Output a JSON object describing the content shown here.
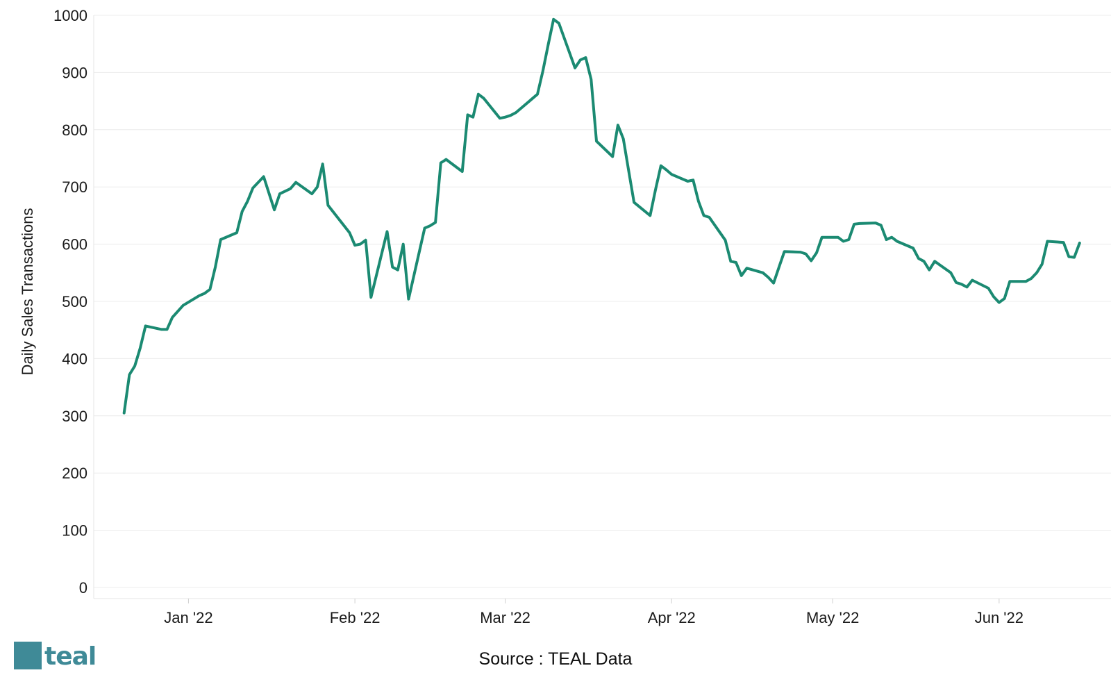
{
  "chart_data": {
    "type": "line",
    "title": "",
    "xlabel": "",
    "ylabel": "Daily Sales Transactions",
    "ylim": [
      0,
      1000
    ],
    "yticks": [
      0,
      100,
      200,
      300,
      400,
      500,
      600,
      700,
      800,
      900,
      1000
    ],
    "xlim": [
      "2021-12-15",
      "2022-06-19"
    ],
    "xticks": [
      {
        "date": "2022-01-01",
        "label": "Jan '22"
      },
      {
        "date": "2022-02-01",
        "label": "Feb '22"
      },
      {
        "date": "2022-03-01",
        "label": "Mar '22"
      },
      {
        "date": "2022-04-01",
        "label": "Apr '22"
      },
      {
        "date": "2022-05-01",
        "label": "May '22"
      },
      {
        "date": "2022-06-01",
        "label": "Jun '22"
      }
    ],
    "grid": true,
    "line_color": "#1b8a72",
    "series": [
      {
        "points": [
          [
            "2021-12-20",
            305
          ],
          [
            "2021-12-21",
            372
          ],
          [
            "2021-12-22",
            387
          ],
          [
            "2021-12-23",
            418
          ],
          [
            "2021-12-24",
            457
          ],
          [
            "2021-12-27",
            451
          ],
          [
            "2021-12-28",
            451
          ],
          [
            "2021-12-29",
            472
          ],
          [
            "2021-12-31",
            493
          ],
          [
            "2022-01-03",
            510
          ],
          [
            "2022-01-04",
            514
          ],
          [
            "2022-01-05",
            521
          ],
          [
            "2022-01-06",
            560
          ],
          [
            "2022-01-07",
            608
          ],
          [
            "2022-01-10",
            620
          ],
          [
            "2022-01-11",
            657
          ],
          [
            "2022-01-12",
            675
          ],
          [
            "2022-01-13",
            698
          ],
          [
            "2022-01-15",
            718
          ],
          [
            "2022-01-17",
            660
          ],
          [
            "2022-01-18",
            688
          ],
          [
            "2022-01-20",
            697
          ],
          [
            "2022-01-21",
            708
          ],
          [
            "2022-01-24",
            688
          ],
          [
            "2022-01-25",
            700
          ],
          [
            "2022-01-26",
            740
          ],
          [
            "2022-01-27",
            668
          ],
          [
            "2022-01-31",
            620
          ],
          [
            "2022-02-01",
            598
          ],
          [
            "2022-02-02",
            600
          ],
          [
            "2022-02-03",
            607
          ],
          [
            "2022-02-04",
            507
          ],
          [
            "2022-02-07",
            622
          ],
          [
            "2022-02-08",
            560
          ],
          [
            "2022-02-09",
            555
          ],
          [
            "2022-02-10",
            600
          ],
          [
            "2022-02-11",
            504
          ],
          [
            "2022-02-14",
            628
          ],
          [
            "2022-02-15",
            632
          ],
          [
            "2022-02-16",
            638
          ],
          [
            "2022-02-17",
            742
          ],
          [
            "2022-02-18",
            748
          ],
          [
            "2022-02-21",
            727
          ],
          [
            "2022-02-22",
            826
          ],
          [
            "2022-02-23",
            822
          ],
          [
            "2022-02-24",
            862
          ],
          [
            "2022-02-25",
            855
          ],
          [
            "2022-02-28",
            820
          ],
          [
            "2022-03-01",
            822
          ],
          [
            "2022-03-02",
            825
          ],
          [
            "2022-03-03",
            830
          ],
          [
            "2022-03-04",
            838
          ],
          [
            "2022-03-07",
            862
          ],
          [
            "2022-03-08",
            902
          ],
          [
            "2022-03-09",
            948
          ],
          [
            "2022-03-10",
            993
          ],
          [
            "2022-03-11",
            986
          ],
          [
            "2022-03-14",
            908
          ],
          [
            "2022-03-15",
            922
          ],
          [
            "2022-03-16",
            926
          ],
          [
            "2022-03-17",
            888
          ],
          [
            "2022-03-18",
            780
          ],
          [
            "2022-03-21",
            753
          ],
          [
            "2022-03-22",
            808
          ],
          [
            "2022-03-23",
            784
          ],
          [
            "2022-03-24",
            728
          ],
          [
            "2022-03-25",
            673
          ],
          [
            "2022-03-28",
            650
          ],
          [
            "2022-03-29",
            695
          ],
          [
            "2022-03-30",
            737
          ],
          [
            "2022-03-31",
            730
          ],
          [
            "2022-04-01",
            722
          ],
          [
            "2022-04-04",
            710
          ],
          [
            "2022-04-05",
            712
          ],
          [
            "2022-04-06",
            675
          ],
          [
            "2022-04-07",
            650
          ],
          [
            "2022-04-08",
            647
          ],
          [
            "2022-04-11",
            607
          ],
          [
            "2022-04-12",
            570
          ],
          [
            "2022-04-13",
            568
          ],
          [
            "2022-04-14",
            545
          ],
          [
            "2022-04-15",
            558
          ],
          [
            "2022-04-18",
            550
          ],
          [
            "2022-04-19",
            542
          ],
          [
            "2022-04-20",
            532
          ],
          [
            "2022-04-21",
            560
          ],
          [
            "2022-04-22",
            587
          ],
          [
            "2022-04-25",
            586
          ],
          [
            "2022-04-26",
            583
          ],
          [
            "2022-04-27",
            571
          ],
          [
            "2022-04-28",
            585
          ],
          [
            "2022-04-29",
            612
          ],
          [
            "2022-05-02",
            612
          ],
          [
            "2022-05-03",
            605
          ],
          [
            "2022-05-04",
            608
          ],
          [
            "2022-05-05",
            635
          ],
          [
            "2022-05-06",
            636
          ],
          [
            "2022-05-09",
            637
          ],
          [
            "2022-05-10",
            633
          ],
          [
            "2022-05-11",
            608
          ],
          [
            "2022-05-12",
            612
          ],
          [
            "2022-05-13",
            605
          ],
          [
            "2022-05-16",
            593
          ],
          [
            "2022-05-17",
            575
          ],
          [
            "2022-05-18",
            570
          ],
          [
            "2022-05-19",
            555
          ],
          [
            "2022-05-20",
            570
          ],
          [
            "2022-05-23",
            550
          ],
          [
            "2022-05-24",
            533
          ],
          [
            "2022-05-25",
            530
          ],
          [
            "2022-05-26",
            525
          ],
          [
            "2022-05-27",
            537
          ],
          [
            "2022-05-30",
            523
          ],
          [
            "2022-05-31",
            508
          ],
          [
            "2022-06-01",
            498
          ],
          [
            "2022-06-02",
            505
          ],
          [
            "2022-06-03",
            535
          ],
          [
            "2022-06-06",
            535
          ],
          [
            "2022-06-07",
            540
          ],
          [
            "2022-06-08",
            550
          ],
          [
            "2022-06-09",
            565
          ],
          [
            "2022-06-10",
            605
          ],
          [
            "2022-06-13",
            603
          ],
          [
            "2022-06-14",
            578
          ],
          [
            "2022-06-15",
            577
          ],
          [
            "2022-06-16",
            602
          ]
        ]
      }
    ]
  },
  "source_text": "Source : TEAL Data",
  "logo": {
    "text": "teal",
    "color": "#3f8a97"
  }
}
